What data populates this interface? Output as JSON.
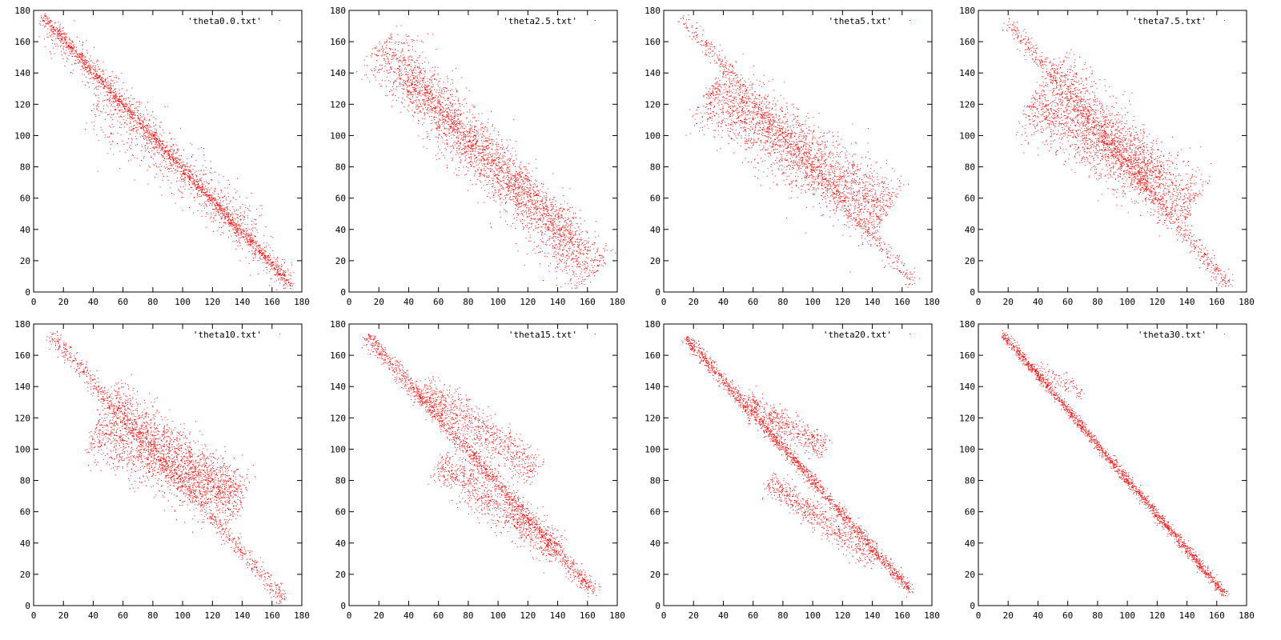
{
  "colors": {
    "series": "#ff0000",
    "axes": "#000000",
    "background": "#ffffff"
  },
  "chart_data": [
    {
      "type": "scatter",
      "legend": "'theta0.0.txt'",
      "legend_position": "top-right",
      "grid": false,
      "xlim": [
        0,
        180
      ],
      "ylim": [
        0,
        180
      ],
      "xticks": [
        0,
        20,
        40,
        60,
        80,
        100,
        120,
        140,
        160,
        180
      ],
      "yticks": [
        0,
        20,
        40,
        60,
        80,
        100,
        120,
        140,
        160,
        180
      ],
      "series": [
        {
          "values_xy": [
            [
              6,
              176
            ],
            [
              15,
              164
            ],
            [
              25,
              154
            ],
            [
              35,
              145
            ],
            [
              45,
              134
            ],
            [
              55,
              124
            ],
            [
              65,
              113
            ],
            [
              75,
              102
            ],
            [
              85,
              92
            ],
            [
              95,
              82
            ],
            [
              105,
              71
            ],
            [
              115,
              61
            ],
            [
              125,
              51
            ],
            [
              135,
              41
            ],
            [
              145,
              31
            ],
            [
              155,
              21
            ],
            [
              165,
              12
            ],
            [
              172,
              5
            ]
          ],
          "clusters": [
            {
              "from": [
                6,
                176
              ],
              "to": [
                173,
                4
              ],
              "spread": 1.6,
              "count": 1400
            },
            {
              "from": [
                10,
                170
              ],
              "to": [
                170,
                8
              ],
              "spread": 5,
              "count": 900
            },
            {
              "from": [
                40,
                120
              ],
              "to": [
                150,
                40
              ],
              "spread": 9,
              "count": 500
            }
          ]
        }
      ]
    },
    {
      "type": "scatter",
      "legend": "'theta2.5.txt'",
      "legend_position": "top-right",
      "grid": false,
      "xlim": [
        0,
        180
      ],
      "ylim": [
        0,
        180
      ],
      "xticks": [
        0,
        20,
        40,
        60,
        80,
        100,
        120,
        140,
        160,
        180
      ],
      "yticks": [
        0,
        20,
        40,
        60,
        80,
        100,
        120,
        140,
        160,
        180
      ],
      "series": [
        {
          "values_xy": [
            [
              18,
              166
            ],
            [
              30,
              145
            ],
            [
              45,
              132
            ],
            [
              60,
              120
            ],
            [
              75,
              107
            ],
            [
              90,
              94
            ],
            [
              105,
              80
            ],
            [
              120,
              66
            ],
            [
              135,
              53
            ],
            [
              150,
              40
            ],
            [
              165,
              10
            ]
          ],
          "clusters": [
            {
              "from": [
                20,
                158
              ],
              "to": [
                165,
                12
              ],
              "spread": 9,
              "count": 2400
            },
            {
              "from": [
                35,
                140
              ],
              "to": [
                150,
                35
              ],
              "spread": 5,
              "count": 900
            }
          ]
        }
      ]
    },
    {
      "type": "scatter",
      "legend": "'theta5.txt'",
      "legend_position": "top-right",
      "grid": false,
      "xlim": [
        0,
        180
      ],
      "ylim": [
        0,
        180
      ],
      "xticks": [
        0,
        20,
        40,
        60,
        80,
        100,
        120,
        140,
        160,
        180
      ],
      "yticks": [
        0,
        20,
        40,
        60,
        80,
        100,
        120,
        140,
        160,
        180
      ],
      "series": [
        {
          "values_xy": [
            [
              12,
              175
            ],
            [
              30,
              155
            ],
            [
              50,
              132
            ],
            [
              70,
              108
            ],
            [
              90,
              88
            ],
            [
              110,
              68
            ],
            [
              130,
              48
            ],
            [
              150,
              28
            ],
            [
              168,
              5
            ]
          ],
          "clusters": [
            {
              "from": [
                12,
                175
              ],
              "to": [
                168,
                5
              ],
              "spread": 2.5,
              "count": 700
            },
            {
              "from": [
                30,
                130
              ],
              "to": [
                150,
                50
              ],
              "spread": 11,
              "count": 2400
            }
          ]
        }
      ]
    },
    {
      "type": "scatter",
      "legend": "'theta7.5.txt'",
      "legend_position": "top-right",
      "grid": false,
      "xlim": [
        0,
        180
      ],
      "ylim": [
        0,
        180
      ],
      "xticks": [
        0,
        20,
        40,
        60,
        80,
        100,
        120,
        140,
        160,
        180
      ],
      "yticks": [
        0,
        20,
        40,
        60,
        80,
        100,
        120,
        140,
        160,
        180
      ],
      "series": [
        {
          "values_xy": [
            [
              20,
              172
            ],
            [
              40,
              150
            ],
            [
              60,
              128
            ],
            [
              80,
              106
            ],
            [
              100,
              84
            ],
            [
              120,
              60
            ],
            [
              140,
              36
            ],
            [
              168,
              4
            ]
          ],
          "clusters": [
            {
              "from": [
                20,
                172
              ],
              "to": [
                168,
                4
              ],
              "spread": 2.5,
              "count": 900
            },
            {
              "from": [
                35,
                122
              ],
              "to": [
                145,
                55
              ],
              "spread": 10,
              "count": 1700
            },
            {
              "from": [
                50,
                145
              ],
              "to": [
                120,
                72
              ],
              "spread": 8,
              "count": 800
            }
          ]
        }
      ]
    },
    {
      "type": "scatter",
      "legend": "'theta10.txt'",
      "legend_position": "top-right",
      "grid": false,
      "xlim": [
        0,
        180
      ],
      "ylim": [
        0,
        180
      ],
      "xticks": [
        0,
        20,
        40,
        60,
        80,
        100,
        120,
        140,
        160,
        180
      ],
      "yticks": [
        0,
        20,
        40,
        60,
        80,
        100,
        120,
        140,
        160,
        180
      ],
      "series": [
        {
          "values_xy": [
            [
              6,
              178
            ],
            [
              20,
              165
            ],
            [
              40,
              146
            ],
            [
              60,
              126
            ],
            [
              80,
              102
            ],
            [
              100,
              80
            ],
            [
              120,
              55
            ],
            [
              140,
              35
            ],
            [
              160,
              12
            ],
            [
              168,
              4
            ]
          ],
          "clusters": [
            {
              "from": [
                10,
                175
              ],
              "to": [
                168,
                4
              ],
              "spread": 2.5,
              "count": 1000
            },
            {
              "from": [
                40,
                113
              ],
              "to": [
                140,
                65
              ],
              "spread": 9,
              "count": 1400
            },
            {
              "from": [
                50,
                135
              ],
              "to": [
                135,
                70
              ],
              "spread": 7,
              "count": 900
            }
          ]
        }
      ]
    },
    {
      "type": "scatter",
      "legend": "'theta15.txt'",
      "legend_position": "top-right",
      "grid": false,
      "xlim": [
        0,
        180
      ],
      "ylim": [
        0,
        180
      ],
      "xticks": [
        0,
        20,
        40,
        60,
        80,
        100,
        120,
        140,
        160,
        180
      ],
      "yticks": [
        0,
        20,
        40,
        60,
        80,
        100,
        120,
        140,
        160,
        180
      ],
      "series": [
        {
          "values_xy": [
            [
              12,
              172
            ],
            [
              40,
              140
            ],
            [
              60,
              118
            ],
            [
              80,
              95
            ],
            [
              100,
              72
            ],
            [
              120,
              52
            ],
            [
              140,
              32
            ],
            [
              165,
              8
            ]
          ],
          "clusters": [
            {
              "from": [
                12,
                172
              ],
              "to": [
                165,
                8
              ],
              "spread": 2.5,
              "count": 1500
            },
            {
              "from": [
                50,
                140
              ],
              "to": [
                125,
                85
              ],
              "spread": 6,
              "count": 800
            },
            {
              "from": [
                60,
                92
              ],
              "to": [
                140,
                35
              ],
              "spread": 6,
              "count": 900
            }
          ]
        }
      ]
    },
    {
      "type": "scatter",
      "legend": "'theta20.txt'",
      "legend_position": "top-right",
      "grid": false,
      "xlim": [
        0,
        180
      ],
      "ylim": [
        0,
        180
      ],
      "xticks": [
        0,
        20,
        40,
        60,
        80,
        100,
        120,
        140,
        160,
        180
      ],
      "yticks": [
        0,
        20,
        40,
        60,
        80,
        100,
        120,
        140,
        160,
        180
      ],
      "series": [
        {
          "values_xy": [
            [
              14,
              172
            ],
            [
              40,
              143
            ],
            [
              60,
              120
            ],
            [
              80,
              98
            ],
            [
              100,
              75
            ],
            [
              120,
              52
            ],
            [
              140,
              30
            ],
            [
              165,
              10
            ]
          ],
          "clusters": [
            {
              "from": [
                14,
                172
              ],
              "to": [
                165,
                10
              ],
              "spread": 1.8,
              "count": 1700
            },
            {
              "from": [
                55,
                132
              ],
              "to": [
                108,
                100
              ],
              "spread": 4,
              "count": 500
            },
            {
              "from": [
                70,
                80
              ],
              "to": [
                140,
                30
              ],
              "spread": 4,
              "count": 600
            }
          ]
        }
      ]
    },
    {
      "type": "scatter",
      "legend": "'theta30.txt'",
      "legend_position": "top-right",
      "grid": false,
      "xlim": [
        0,
        180
      ],
      "ylim": [
        0,
        180
      ],
      "xticks": [
        0,
        20,
        40,
        60,
        80,
        100,
        120,
        140,
        160,
        180
      ],
      "yticks": [
        0,
        20,
        40,
        60,
        80,
        100,
        120,
        140,
        160,
        180
      ],
      "series": [
        {
          "values_xy": [
            [
              16,
              174
            ],
            [
              40,
              148
            ],
            [
              60,
              124
            ],
            [
              80,
              100
            ],
            [
              100,
              78
            ],
            [
              120,
              56
            ],
            [
              140,
              32
            ],
            [
              165,
              8
            ]
          ],
          "clusters": [
            {
              "from": [
                16,
                174
              ],
              "to": [
                165,
                8
              ],
              "spread": 1.4,
              "count": 1800
            },
            {
              "from": [
                38,
                152
              ],
              "to": [
                70,
                135
              ],
              "spread": 2.5,
              "count": 120
            }
          ]
        }
      ]
    }
  ]
}
